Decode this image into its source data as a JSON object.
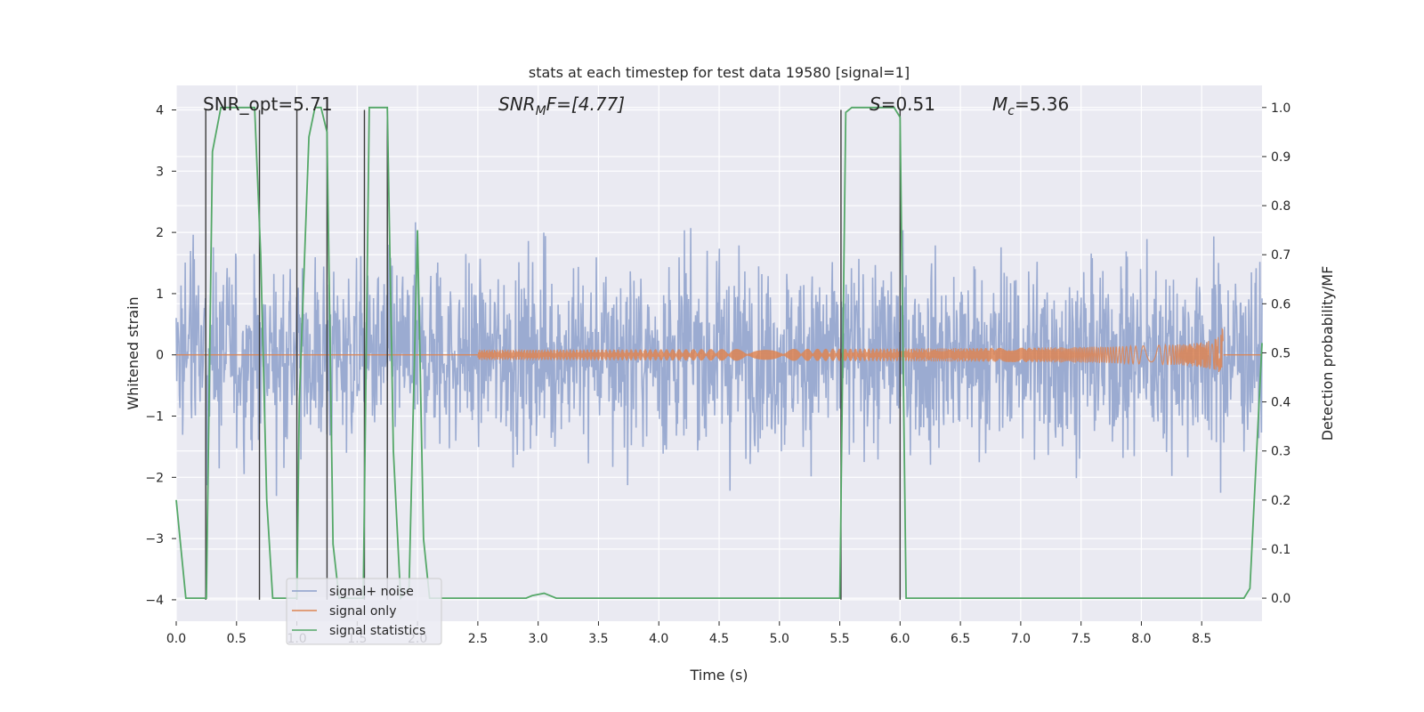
{
  "chart_data": {
    "type": "line",
    "title": "stats at each timestep for test data 19580 [signal=1]",
    "xlabel": "Time (s)",
    "ylabel_left": "Whitened strain",
    "ylabel_right": "Detection probability/MF",
    "xlim": [
      0.0,
      9.0
    ],
    "ylim_left": [
      -4.35,
      4.4
    ],
    "ylim_right": [
      -0.047,
      1.045
    ],
    "xticks": [
      "0.0",
      "0.5",
      "1.0",
      "1.5",
      "2.0",
      "2.5",
      "3.0",
      "3.5",
      "4.0",
      "4.5",
      "5.0",
      "5.5",
      "6.0",
      "6.5",
      "7.0",
      "7.5",
      "8.0",
      "8.5"
    ],
    "yticks_left": [
      "4",
      "3",
      "2",
      "1",
      "0",
      "−1",
      "−2",
      "−3",
      "−4"
    ],
    "yticks_right": [
      "1.0",
      "0.9",
      "0.8",
      "0.7",
      "0.6",
      "0.5",
      "0.4",
      "0.3",
      "0.2",
      "0.1",
      "0.0"
    ],
    "grid": true,
    "legend_position": "lower-left",
    "annotations": {
      "snr_opt": "SNR_opt=5.71",
      "snr_mf_main": "SNR",
      "snr_mf_sub": "M",
      "snr_mf_rest": "F=[4.77]",
      "s_main": "S",
      "s_rest": "=0.51",
      "mc_main": "M",
      "mc_sub": "c",
      "mc_rest": "=5.36"
    },
    "series": [
      {
        "name": "signal+ noise",
        "color": "#8da0cb",
        "axis": "left",
        "amplitude": 1.0,
        "samples": 2048
      },
      {
        "name": "signal only",
        "color": "#dd8452",
        "axis": "left",
        "chirp_start": 2.5,
        "chirp_end": 8.68,
        "peak_amplitude": 0.65
      },
      {
        "name": "signal statistics",
        "color": "#55a868",
        "axis": "right",
        "x": [
          0.0,
          0.08,
          0.25,
          0.3,
          0.37,
          0.5,
          0.65,
          0.7,
          0.75,
          0.8,
          1.0,
          1.02,
          1.1,
          1.15,
          1.2,
          1.25,
          1.3,
          1.35,
          1.55,
          1.6,
          1.65,
          1.75,
          1.8,
          1.86,
          1.93,
          2.0,
          2.05,
          2.1,
          2.2,
          2.5,
          2.9,
          2.95,
          3.05,
          3.15,
          3.3,
          5.5,
          5.55,
          5.6,
          5.95,
          6.0,
          6.05,
          6.5,
          8.0,
          8.85,
          8.9,
          9.0
        ],
        "values": [
          0.2,
          0.0,
          0.0,
          0.91,
          1.0,
          1.0,
          1.0,
          0.7,
          0.2,
          0.0,
          0.0,
          0.4,
          0.94,
          1.0,
          1.0,
          0.95,
          0.11,
          0.0,
          0.0,
          1.0,
          1.0,
          1.0,
          0.3,
          0.0,
          0.02,
          0.75,
          0.12,
          0.0,
          0.0,
          0.0,
          0.0,
          0.005,
          0.01,
          0.0,
          0.0,
          0.0,
          0.99,
          1.0,
          1.0,
          0.98,
          0.0,
          0.0,
          0.0,
          0.0,
          0.02,
          0.52
        ]
      }
    ],
    "vertical_markers_x": [
      0.245,
      0.69,
      1.0,
      1.25,
      1.56,
      1.75,
      5.51,
      6.0
    ],
    "vertical_markers_color": "#3a3a3a"
  }
}
